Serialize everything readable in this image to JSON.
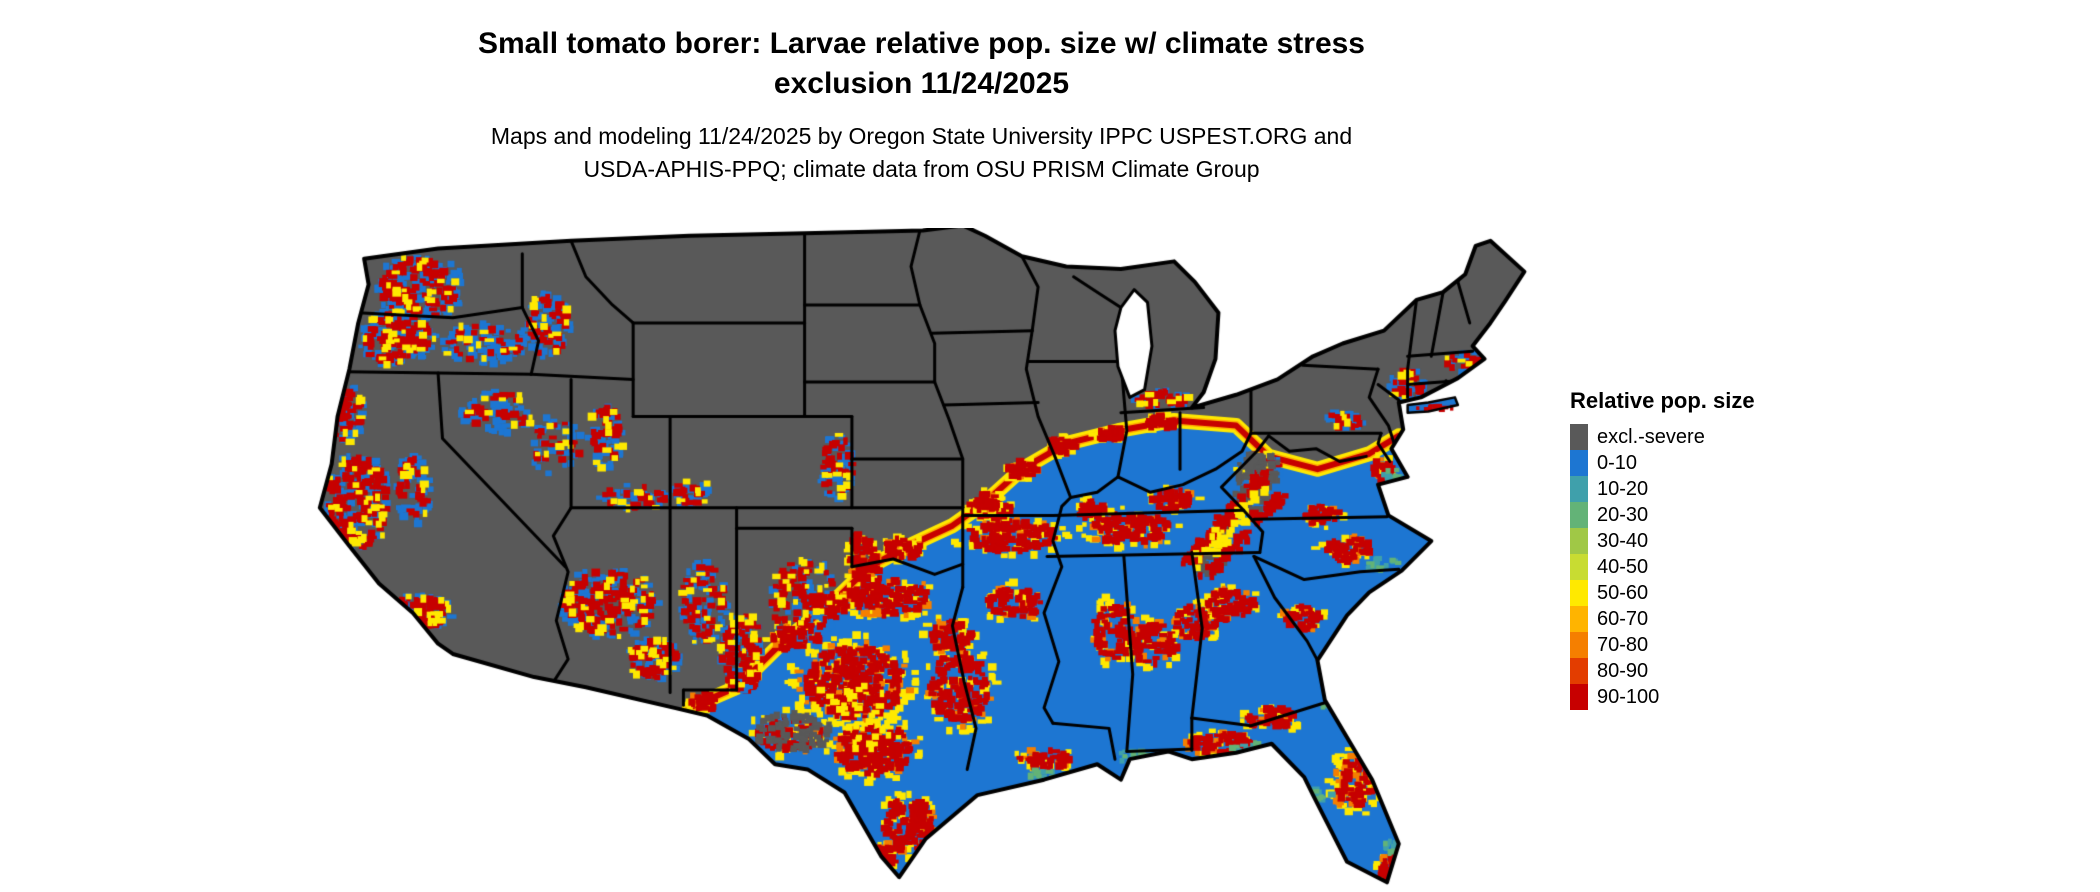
{
  "header": {
    "title_line1": "Small tomato borer: Larvae relative pop. size w/ climate stress",
    "title_line2": "exclusion 11/24/2025",
    "subtitle_line1": "Maps and modeling 11/24/2025 by Oregon State University IPPC USPEST.ORG and",
    "subtitle_line2": "USDA-APHIS-PPQ; climate data from OSU PRISM Climate Group"
  },
  "legend": {
    "title": "Relative pop. size",
    "items": [
      {
        "label": "excl.-severe",
        "color": "#595959"
      },
      {
        "label": "0-10",
        "color": "#1d76d2"
      },
      {
        "label": "10-20",
        "color": "#3fa0ab"
      },
      {
        "label": "20-30",
        "color": "#63b377"
      },
      {
        "label": "30-40",
        "color": "#a0c846"
      },
      {
        "label": "40-50",
        "color": "#c8dc32"
      },
      {
        "label": "50-60",
        "color": "#ffe900"
      },
      {
        "label": "60-70",
        "color": "#ffb400"
      },
      {
        "label": "70-80",
        "color": "#f57f00"
      },
      {
        "label": "80-90",
        "color": "#e33d00"
      },
      {
        "label": "90-100",
        "color": "#c70000"
      }
    ]
  }
}
